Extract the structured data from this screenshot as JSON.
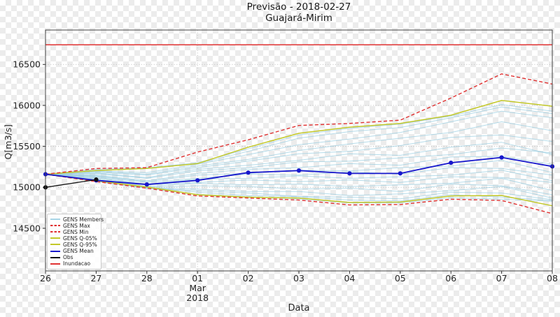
{
  "figure": {
    "title_line1": "Previsão - 2018-02-27",
    "title_line2": "Guajará-Mirim"
  },
  "axes": {
    "ylabel": "Q[m3/s]",
    "xlabel": "Data",
    "month_label_line1": "Mar",
    "month_label_line2": "2018"
  },
  "legend": {
    "items": [
      {
        "label": "GENS Members",
        "color": "#a8d5e6",
        "dashed": false
      },
      {
        "label": "GENS Max",
        "color": "#e03131",
        "dashed": true
      },
      {
        "label": "GENS Min",
        "color": "#e03131",
        "dashed": true
      },
      {
        "label": "GENS Q-05%",
        "color": "#c3c829",
        "dashed": false
      },
      {
        "label": "GENS Q-95%",
        "color": "#c3c829",
        "dashed": false
      },
      {
        "label": "GENS Mean",
        "color": "#1717cc",
        "dashed": false
      },
      {
        "label": "Obs",
        "color": "#111111",
        "dashed": false
      },
      {
        "label": "Inundacao",
        "color": "#e03131",
        "dashed": false
      }
    ]
  },
  "chart_data": {
    "type": "line",
    "title": "Previsão - 2018-02-27 / Guajará-Mirim",
    "xlabel": "Data",
    "ylabel": "Q[m3/s]",
    "x_tick_labels": [
      "26",
      "27",
      "28",
      "01",
      "02",
      "03",
      "04",
      "05",
      "06",
      "07",
      "08"
    ],
    "x_dates": [
      "2018-02-26",
      "2018-02-27",
      "2018-02-28",
      "2018-03-01",
      "2018-03-02",
      "2018-03-03",
      "2018-03-04",
      "2018-03-05",
      "2018-03-06",
      "2018-03-07",
      "2018-03-08"
    ],
    "yticks": [
      14500,
      15000,
      15500,
      16000,
      16500
    ],
    "ylim": [
      13980,
      16920
    ],
    "grid": "dotted horizontal gridlines at yticks, dotted vertical gridline at 2018-03-01",
    "legend_position": "lower left",
    "series": [
      {
        "name": "GENS Max",
        "color": "#e03131",
        "style": "dashed",
        "width": 1.4,
        "values": [
          15160,
          15230,
          15240,
          15430,
          15580,
          15755,
          15780,
          15820,
          16090,
          16385,
          16260
        ]
      },
      {
        "name": "GENS Min",
        "color": "#e03131",
        "style": "dashed",
        "width": 1.4,
        "values": [
          15160,
          15070,
          14990,
          14895,
          14870,
          14845,
          14785,
          14790,
          14855,
          14840,
          14680
        ]
      },
      {
        "name": "GENS Q-05%",
        "color": "#c3c829",
        "style": "solid",
        "width": 1.5,
        "values": [
          15160,
          15080,
          15005,
          14910,
          14880,
          14870,
          14815,
          14820,
          14895,
          14900,
          14775
        ]
      },
      {
        "name": "GENS Q-95%",
        "color": "#c3c829",
        "style": "solid",
        "width": 1.5,
        "values": [
          15160,
          15205,
          15230,
          15290,
          15490,
          15660,
          15735,
          15780,
          15880,
          16060,
          15990
        ]
      },
      {
        "name": "GENS Mean",
        "color": "#1717cc",
        "style": "solid",
        "width": 1.8,
        "marker": "circle",
        "values": [
          15160,
          15085,
          15035,
          15085,
          15180,
          15205,
          15170,
          15170,
          15300,
          15365,
          15255
        ]
      },
      {
        "name": "Obs",
        "color": "#111111",
        "style": "solid",
        "width": 1.3,
        "marker": "circle",
        "x_indices": [
          0,
          1
        ],
        "values": [
          15000,
          15095
        ]
      },
      {
        "name": "Inundacao",
        "color": "#e03131",
        "style": "solid",
        "width": 1.6,
        "hline": 16740
      }
    ],
    "members": {
      "name": "GENS Members",
      "color": "#8fc9de",
      "opacity": 0.65,
      "values": [
        [
          15160,
          15220,
          15240,
          15300,
          15470,
          15640,
          15720,
          15770,
          15870,
          16010,
          15930
        ],
        [
          15160,
          15210,
          15230,
          15290,
          15440,
          15600,
          15680,
          15730,
          15850,
          15980,
          15900
        ],
        [
          15160,
          15200,
          15180,
          15280,
          15400,
          15520,
          15590,
          15670,
          15800,
          15930,
          15850
        ],
        [
          15160,
          15195,
          15160,
          15260,
          15340,
          15450,
          15530,
          15600,
          15670,
          15800,
          15690
        ],
        [
          15160,
          15185,
          15150,
          15240,
          15320,
          15410,
          15440,
          15510,
          15610,
          15640,
          15560
        ],
        [
          15160,
          15175,
          15120,
          15220,
          15270,
          15330,
          15410,
          15390,
          15490,
          15550,
          15400
        ],
        [
          15160,
          15165,
          15110,
          15200,
          15240,
          15310,
          15320,
          15360,
          15400,
          15480,
          15420
        ],
        [
          15160,
          15150,
          15080,
          15170,
          15220,
          15240,
          15290,
          15270,
          15370,
          15380,
          15280
        ],
        [
          15160,
          15140,
          15070,
          15150,
          15170,
          15210,
          15200,
          15240,
          15260,
          15330,
          15180
        ],
        [
          15160,
          15135,
          15060,
          15110,
          15160,
          15150,
          15190,
          15160,
          15240,
          15230,
          15150
        ],
        [
          15160,
          15125,
          15040,
          15100,
          15110,
          15140,
          15110,
          15130,
          15150,
          15210,
          15080
        ],
        [
          15160,
          15115,
          15030,
          15060,
          15090,
          15070,
          15090,
          15060,
          15130,
          15120,
          15060
        ],
        [
          15160,
          15105,
          15010,
          15050,
          15030,
          15040,
          15010,
          15030,
          15050,
          15110,
          14960
        ],
        [
          15160,
          15095,
          15000,
          15020,
          15010,
          14980,
          14990,
          14950,
          15040,
          15020,
          14910
        ],
        [
          15160,
          15085,
          14995,
          14980,
          14950,
          14950,
          14900,
          14920,
          14960,
          15010,
          14870
        ],
        [
          15160,
          15080,
          14990,
          14960,
          14930,
          14890,
          14880,
          14860,
          14940,
          14930,
          14850
        ],
        [
          15160,
          15075,
          15000,
          14940,
          14900,
          14885,
          14845,
          14835,
          14910,
          14880,
          14840
        ],
        [
          15160,
          15070,
          14990,
          14915,
          14885,
          14860,
          14810,
          14810,
          14875,
          14855,
          14830
        ]
      ]
    }
  }
}
